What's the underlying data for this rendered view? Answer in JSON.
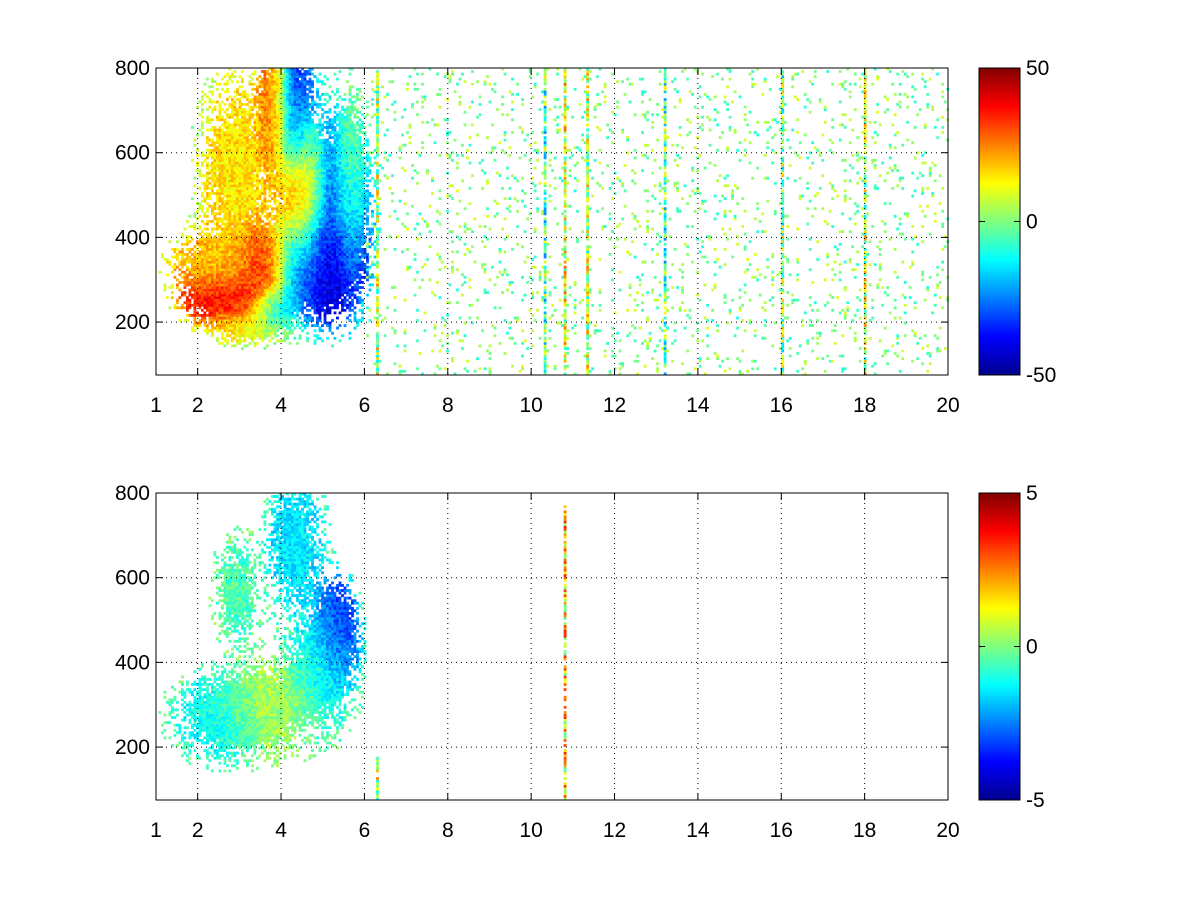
{
  "chart_data": [
    {
      "type": "heatmap",
      "title": "",
      "xlabel": "",
      "ylabel": "",
      "xlim": [
        1,
        20
      ],
      "ylim": [
        75,
        800
      ],
      "xticks": [
        1,
        2,
        4,
        6,
        8,
        10,
        12,
        14,
        16,
        18,
        20
      ],
      "yticks": [
        200,
        400,
        600,
        800
      ],
      "grid": true,
      "colorbar": {
        "min": -50,
        "max": 50,
        "ticks": [
          -50,
          0,
          50
        ],
        "colormap": "jet"
      },
      "blobs": [
        {
          "x": 2.7,
          "y": 250,
          "sx": 0.6,
          "sy": 35,
          "value": 40
        },
        {
          "x": 3.6,
          "y": 330,
          "sx": 0.35,
          "sy": 60,
          "value": 46
        },
        {
          "x": 2.5,
          "y": 330,
          "sx": 0.7,
          "sy": 50,
          "value": 20
        },
        {
          "x": 2.9,
          "y": 560,
          "sx": 0.5,
          "sy": 130,
          "value": 15
        },
        {
          "x": 3.8,
          "y": 690,
          "sx": 0.22,
          "sy": 90,
          "value": 32
        },
        {
          "x": 4.5,
          "y": 480,
          "sx": 0.35,
          "sy": 120,
          "value": 30
        },
        {
          "x": 4.3,
          "y": 690,
          "sx": 0.3,
          "sy": 90,
          "value": -35
        },
        {
          "x": 4.7,
          "y": 330,
          "sx": 0.6,
          "sy": 70,
          "value": -48
        },
        {
          "x": 5.3,
          "y": 450,
          "sx": 0.45,
          "sy": 130,
          "value": -40
        },
        {
          "x": 3.8,
          "y": 230,
          "sx": 0.3,
          "sy": 30,
          "value": -22
        },
        {
          "x": 5.6,
          "y": 520,
          "sx": 0.25,
          "sy": 120,
          "value": 10
        },
        {
          "x": 3.2,
          "y": 190,
          "sx": 0.6,
          "sy": 25,
          "value": 10
        }
      ],
      "lines": [
        {
          "x": 6.3,
          "value": 5
        },
        {
          "x": 10.3,
          "value": -5
        },
        {
          "x": 10.8,
          "value": 10
        },
        {
          "x": 11.3,
          "value": 5
        },
        {
          "x": 13.2,
          "value": -5
        },
        {
          "x": 16.0,
          "value": 0
        },
        {
          "x": 18.0,
          "value": 5
        }
      ],
      "noise": {
        "xmin": 6,
        "xmax": 20,
        "density": 0.18,
        "vmin": -10,
        "vmax": 10
      }
    },
    {
      "type": "heatmap",
      "title": "",
      "xlabel": "",
      "ylabel": "",
      "xlim": [
        1,
        20
      ],
      "ylim": [
        75,
        800
      ],
      "xticks": [
        1,
        2,
        4,
        6,
        8,
        10,
        12,
        14,
        16,
        18,
        20
      ],
      "yticks": [
        200,
        400,
        600,
        800
      ],
      "grid": true,
      "colorbar": {
        "min": -5,
        "max": 5,
        "ticks": [
          -5,
          0,
          5
        ],
        "colormap": "jet"
      },
      "blobs": [
        {
          "x": 2.6,
          "y": 270,
          "sx": 0.7,
          "sy": 60,
          "value": -1.2
        },
        {
          "x": 3.6,
          "y": 290,
          "sx": 0.6,
          "sy": 60,
          "value": 0.8
        },
        {
          "x": 4.3,
          "y": 680,
          "sx": 0.4,
          "sy": 90,
          "value": -1.5
        },
        {
          "x": 5.3,
          "y": 470,
          "sx": 0.3,
          "sy": 70,
          "value": -3.5
        },
        {
          "x": 4.9,
          "y": 380,
          "sx": 0.5,
          "sy": 90,
          "value": -1.0
        },
        {
          "x": 2.9,
          "y": 560,
          "sx": 0.3,
          "sy": 70,
          "value": -0.5
        }
      ],
      "lines": [
        {
          "x": 6.3,
          "value": 0.5,
          "ymax": 180
        },
        {
          "x": 10.8,
          "value": 1.5,
          "ymax": 770
        }
      ],
      "noise": {
        "xmin": 6,
        "xmax": 20,
        "density": 0,
        "vmin": -1,
        "vmax": 1
      }
    }
  ]
}
